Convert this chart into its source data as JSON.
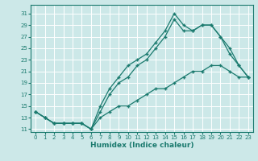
{
  "xlabel": "Humidex (Indice chaleur)",
  "bg_color": "#cce8e8",
  "grid_color": "#ffffff",
  "line_color": "#1a7a6e",
  "xlim": [
    -0.5,
    23.5
  ],
  "ylim": [
    10.5,
    32.5
  ],
  "xticks": [
    0,
    1,
    2,
    3,
    4,
    5,
    6,
    7,
    8,
    9,
    10,
    11,
    12,
    13,
    14,
    15,
    16,
    17,
    18,
    19,
    20,
    21,
    22,
    23
  ],
  "yticks": [
    11,
    13,
    15,
    17,
    19,
    21,
    23,
    25,
    27,
    29,
    31
  ],
  "line1_x": [
    0,
    1,
    2,
    3,
    4,
    5,
    6,
    7,
    8,
    9,
    10,
    11,
    12,
    13,
    14,
    15,
    16,
    17,
    18,
    19,
    20,
    21,
    22,
    23
  ],
  "line1_y": [
    14,
    13,
    12,
    12,
    12,
    12,
    11,
    15,
    18,
    20,
    22,
    23,
    24,
    26,
    28,
    31,
    29,
    28,
    29,
    29,
    27,
    25,
    22,
    20
  ],
  "line2_x": [
    0,
    1,
    2,
    3,
    4,
    5,
    6,
    7,
    8,
    9,
    10,
    11,
    12,
    13,
    14,
    15,
    16,
    17,
    18,
    19,
    20,
    21,
    22,
    23
  ],
  "line2_y": [
    14,
    13,
    12,
    12,
    12,
    12,
    11,
    14,
    17,
    19,
    20,
    22,
    23,
    25,
    27,
    30,
    28,
    28,
    29,
    29,
    27,
    24,
    22,
    20
  ],
  "line3_x": [
    0,
    1,
    2,
    3,
    4,
    5,
    6,
    7,
    8,
    9,
    10,
    11,
    12,
    13,
    14,
    15,
    16,
    17,
    18,
    19,
    20,
    21,
    22,
    23
  ],
  "line3_y": [
    14,
    13,
    12,
    12,
    12,
    12,
    11,
    13,
    14,
    15,
    15,
    16,
    17,
    18,
    18,
    19,
    20,
    21,
    21,
    22,
    22,
    21,
    20,
    20
  ]
}
